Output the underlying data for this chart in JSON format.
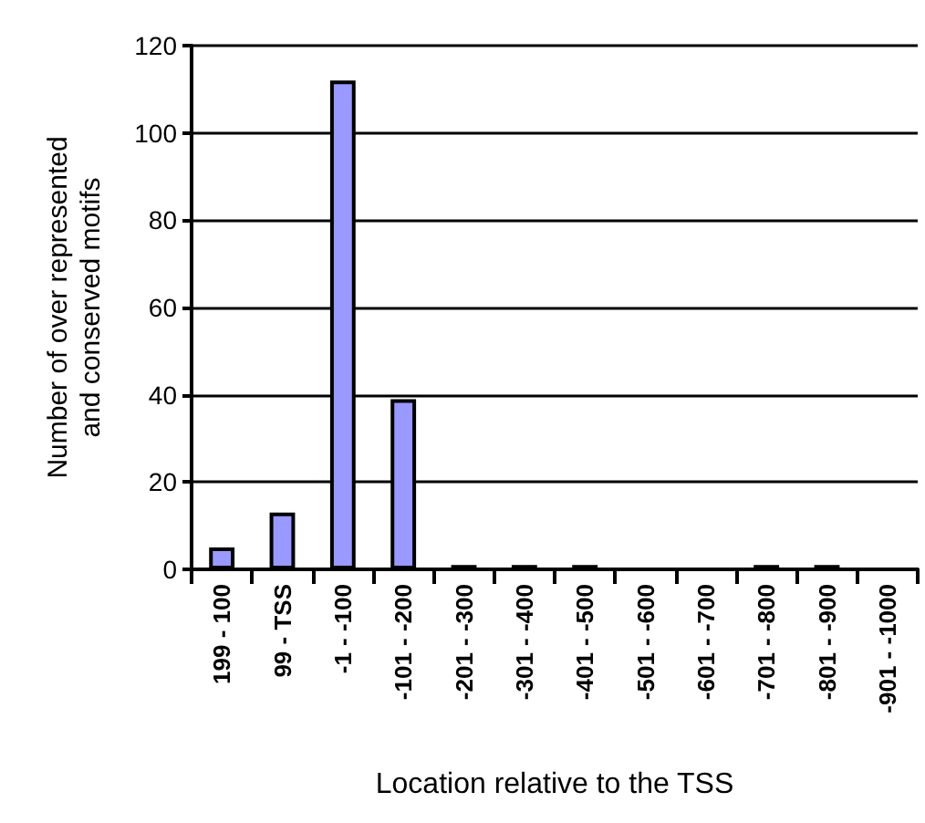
{
  "chart_data": {
    "type": "bar",
    "xlabel": "Location relative to the TSS",
    "ylabel": "Number of over represented\nand conserved motifs",
    "categories": [
      "199 - 100",
      "99 - TSS",
      "-1 - -100",
      "-101 - -200",
      "-201 - -300",
      "-301 - -400",
      "-401 - -500",
      "-501 - -600",
      "-601 - -700",
      "-701 - -800",
      "-801 - -900",
      "-901 - -1000"
    ],
    "values": [
      5,
      13,
      112,
      39,
      1,
      1,
      1,
      0,
      0,
      1,
      1,
      0
    ],
    "color": "#9999ff",
    "ylim": [
      0,
      120
    ],
    "yticks": [
      0,
      20,
      40,
      60,
      80,
      100,
      120
    ],
    "grid": "y"
  }
}
